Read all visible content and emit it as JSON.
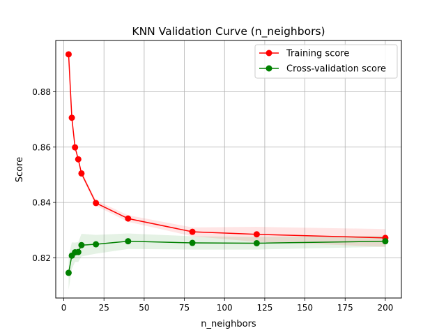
{
  "chart_data": {
    "type": "line",
    "title": "KNN Validation Curve (n_neighbors)",
    "xlabel": "n_neighbors",
    "ylabel": "Score",
    "xlim": [
      -5,
      210
    ],
    "ylim": [
      0.8055,
      0.8985
    ],
    "xticks": [
      0,
      25,
      50,
      75,
      100,
      125,
      150,
      175,
      200
    ],
    "yticks": [
      0.82,
      0.84,
      0.86,
      0.88
    ],
    "ytick_labels": [
      "0.82",
      "0.84",
      "0.86",
      "0.88"
    ],
    "grid": true,
    "legend_position": "top-right",
    "x": [
      3,
      5,
      7,
      9,
      11,
      20,
      40,
      80,
      120,
      200
    ],
    "series": [
      {
        "name": "Training score",
        "color": "#ff0000",
        "band_color": "#ff0000",
        "values": [
          0.8935,
          0.8706,
          0.8599,
          0.8556,
          0.8505,
          0.8398,
          0.8342,
          0.8294,
          0.8285,
          0.8272
        ],
        "band_lower": [
          0.8925,
          0.8698,
          0.8591,
          0.8548,
          0.8497,
          0.8388,
          0.833,
          0.8278,
          0.8258,
          0.824
        ],
        "band_upper": [
          0.8945,
          0.8714,
          0.8607,
          0.8564,
          0.8513,
          0.8408,
          0.8354,
          0.831,
          0.8312,
          0.8304
        ]
      },
      {
        "name": "Cross-validation score",
        "color": "#008000",
        "band_color": "#008000",
        "values": [
          0.8146,
          0.8208,
          0.822,
          0.8221,
          0.8246,
          0.8249,
          0.826,
          0.8254,
          0.8253,
          0.826
        ],
        "band_lower": [
          0.8085,
          0.816,
          0.8185,
          0.8185,
          0.8205,
          0.8215,
          0.8232,
          0.823,
          0.823,
          0.824
        ],
        "band_upper": [
          0.8207,
          0.8256,
          0.8255,
          0.8257,
          0.8287,
          0.8283,
          0.8288,
          0.8278,
          0.8276,
          0.828
        ]
      }
    ]
  }
}
